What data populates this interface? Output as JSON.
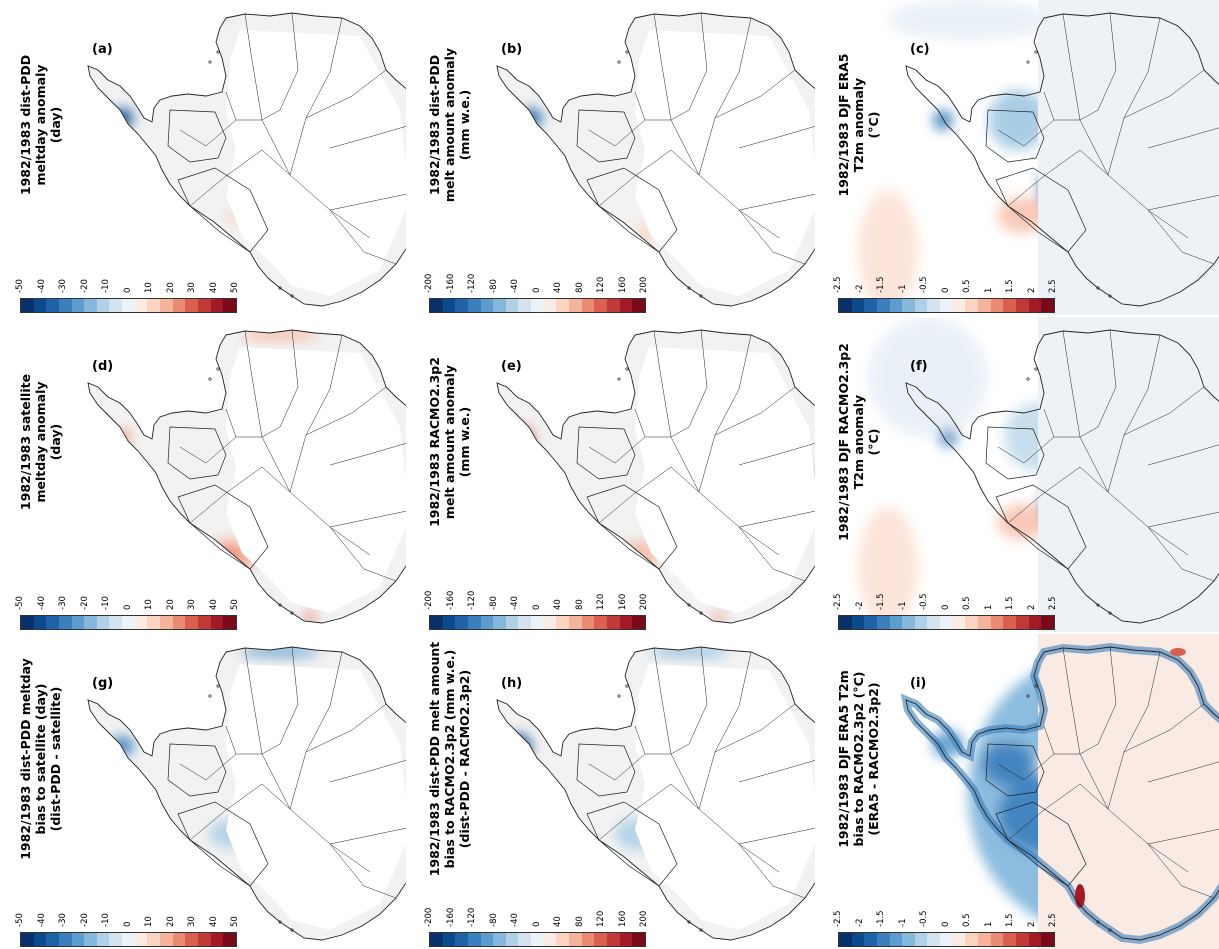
{
  "colors": {
    "diverging": [
      "#08306b",
      "#0b4a8c",
      "#1f62a8",
      "#3b7fbd",
      "#5c9ccf",
      "#86b8dc",
      "#afd0e6",
      "#d3e4f0",
      "#edf2f7",
      "#f9ebe4",
      "#fbd3c1",
      "#f6b39b",
      "#ec8b73",
      "#d9604f",
      "#c13a37",
      "#a11a26",
      "#7a0a1a"
    ],
    "land": "#f2f2f2",
    "coast": "#222222"
  },
  "panels": [
    {
      "id": "a",
      "letter": "(a)",
      "ylabel": [
        "1982/1983 dist-PDD",
        "meltday anomaly",
        "(day)"
      ],
      "ticks": [
        "-50",
        "-40",
        "-30",
        "-20",
        "-10",
        "0",
        "10",
        "20",
        "30",
        "40",
        "50"
      ],
      "field": "meltday"
    },
    {
      "id": "b",
      "letter": "(b)",
      "ylabel": [
        "1982/1983 dist-PDD",
        "melt amount anomaly",
        "(mm w.e.)"
      ],
      "ticks": [
        "-200",
        "-160",
        "-120",
        "-80",
        "-40",
        "0",
        "40",
        "80",
        "120",
        "160",
        "200"
      ],
      "field": "melt"
    },
    {
      "id": "c",
      "letter": "(c)",
      "ylabel": [
        "1982/1983 DJF ERA5",
        "T2m anomaly",
        "(°C)"
      ],
      "ticks": [
        "-2.5",
        "-2",
        "-1.5",
        "-1",
        "-0.5",
        "0",
        "0.5",
        "1",
        "1.5",
        "2",
        "2.5"
      ],
      "field": "temp"
    },
    {
      "id": "d",
      "letter": "(d)",
      "ylabel": [
        "1982/1983 satellite",
        "meltday anomaly",
        "(day)"
      ],
      "ticks": [
        "-50",
        "-40",
        "-30",
        "-20",
        "-10",
        "0",
        "10",
        "20",
        "30",
        "40",
        "50"
      ],
      "field": "sat"
    },
    {
      "id": "e",
      "letter": "(e)",
      "ylabel": [
        "1982/1983 RACMO2.3p2",
        "melt amount anomaly",
        "(mm w.e.)"
      ],
      "ticks": [
        "-200",
        "-160",
        "-120",
        "-80",
        "-40",
        "0",
        "40",
        "80",
        "120",
        "160",
        "200"
      ],
      "field": "racmo"
    },
    {
      "id": "f",
      "letter": "(f)",
      "ylabel": [
        "1982/1983 DJF RACMO2.3p2",
        "T2m anomaly",
        "(°C)"
      ],
      "ticks": [
        "-2.5",
        "-2",
        "-1.5",
        "-1",
        "-0.5",
        "0",
        "0.5",
        "1",
        "1.5",
        "2",
        "2.5"
      ],
      "field": "temp2"
    },
    {
      "id": "g",
      "letter": "(g)",
      "ylabel": [
        "1982/1983 dist-PDD meltday",
        "bias to satellite (day)",
        "(dist-PDD - satellite)"
      ],
      "ticks": [
        "-50",
        "-40",
        "-30",
        "-20",
        "-10",
        "0",
        "10",
        "20",
        "30",
        "40",
        "50"
      ],
      "field": "bias1"
    },
    {
      "id": "h",
      "letter": "(h)",
      "ylabel": [
        "1982/1983 dist-PDD melt amount",
        "bias to RACMO2.3p2 (mm w.e.)",
        "(dist-PDD - RACMO2.3p2)"
      ],
      "ticks": [
        "-200",
        "-160",
        "-120",
        "-80",
        "-40",
        "0",
        "40",
        "80",
        "120",
        "160",
        "200"
      ],
      "field": "bias2"
    },
    {
      "id": "i",
      "letter": "(i)",
      "ylabel": [
        "1982/1983 DJF ERA5 T2m",
        "bias to RACMO2.3p2 (°C)",
        "(ERA5 - RACMO2.3p2)"
      ],
      "ticks": [
        "-2.5",
        "-2",
        "-1.5",
        "-1",
        "-0.5",
        "0",
        "0.5",
        "1",
        "1.5",
        "2",
        "2.5"
      ],
      "field": "bias3"
    }
  ]
}
